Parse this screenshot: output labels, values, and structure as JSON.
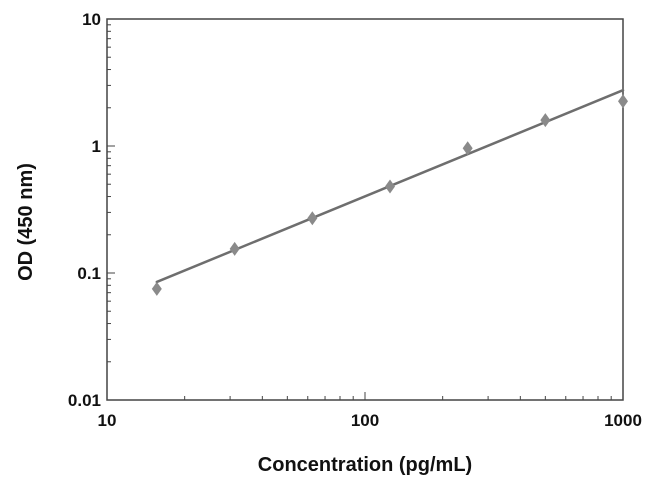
{
  "chart_data": {
    "type": "scatter",
    "title": "",
    "xlabel": "Concentration (pg/mL)",
    "ylabel": "OD (450 nm)",
    "x_scale": "log",
    "y_scale": "log",
    "xlim": [
      10,
      1000
    ],
    "ylim": [
      0.01,
      10
    ],
    "x_ticks": [
      10,
      100,
      1000
    ],
    "x_tick_labels": [
      "10",
      "100",
      "1000"
    ],
    "y_ticks": [
      0.01,
      0.1,
      1,
      10
    ],
    "y_tick_labels": [
      "0.01",
      "0.1",
      "1",
      "10"
    ],
    "grid": false,
    "legend": "none",
    "series": [
      {
        "marker": "diamond",
        "x": [
          15.6,
          31.25,
          62.5,
          125,
          250,
          500,
          1000
        ],
        "y": [
          0.075,
          0.155,
          0.27,
          0.48,
          0.96,
          1.6,
          2.25
        ]
      }
    ],
    "fit_line": {
      "x": [
        15.6,
        1000
      ],
      "y": [
        0.085,
        2.75
      ]
    },
    "colors": {
      "marker": "#8a8a8a",
      "line": "#6e6e6e",
      "axis": "#444444"
    }
  }
}
